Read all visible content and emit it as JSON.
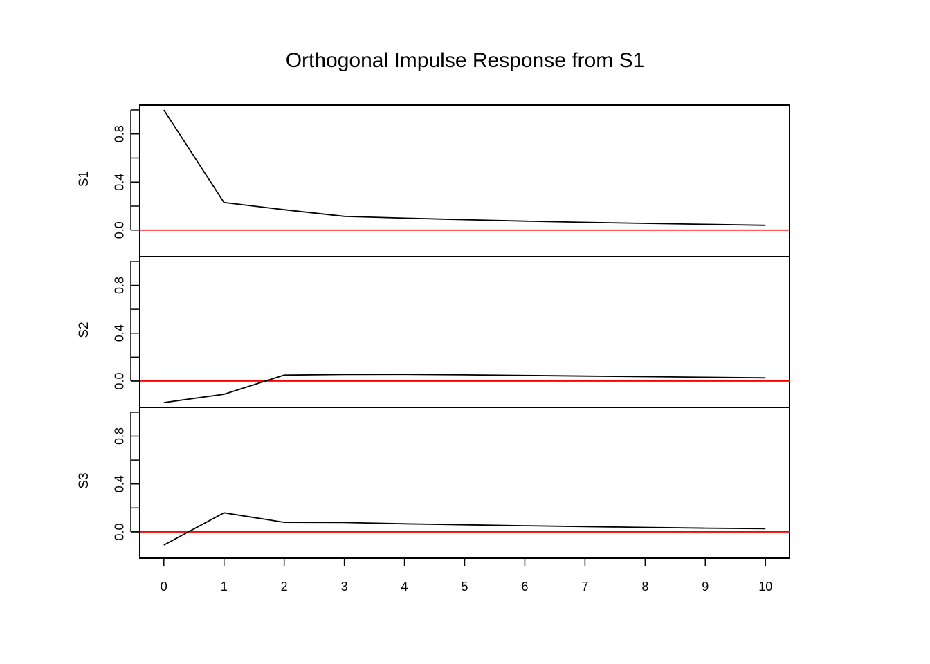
{
  "chart_data": {
    "type": "line",
    "title": "Orthogonal Impulse Response from S1",
    "x": [
      0,
      1,
      2,
      3,
      4,
      5,
      6,
      7,
      8,
      9,
      10
    ],
    "x_tick_labels": [
      "0",
      "1",
      "2",
      "3",
      "4",
      "5",
      "6",
      "7",
      "8",
      "9",
      "10"
    ],
    "xlim": [
      -0.4,
      10.4
    ],
    "ylim": [
      -0.22,
      1.04
    ],
    "y_tick_labels": [
      "0.0",
      "0.4",
      "0.8"
    ],
    "reference_line": {
      "y": 0,
      "color": "#ff0000"
    },
    "line_color": "#000000",
    "panels": [
      {
        "ylabel": "S1",
        "values": [
          1.0,
          0.23,
          0.17,
          0.115,
          0.1,
          0.087,
          0.075,
          0.065,
          0.056,
          0.048,
          0.04
        ]
      },
      {
        "ylabel": "S2",
        "values": [
          -0.18,
          -0.11,
          0.05,
          0.055,
          0.056,
          0.052,
          0.047,
          0.042,
          0.037,
          0.032,
          0.027
        ]
      },
      {
        "ylabel": "S3",
        "values": [
          -0.11,
          0.16,
          0.08,
          0.078,
          0.067,
          0.059,
          0.051,
          0.044,
          0.037,
          0.031,
          0.027
        ]
      }
    ]
  }
}
